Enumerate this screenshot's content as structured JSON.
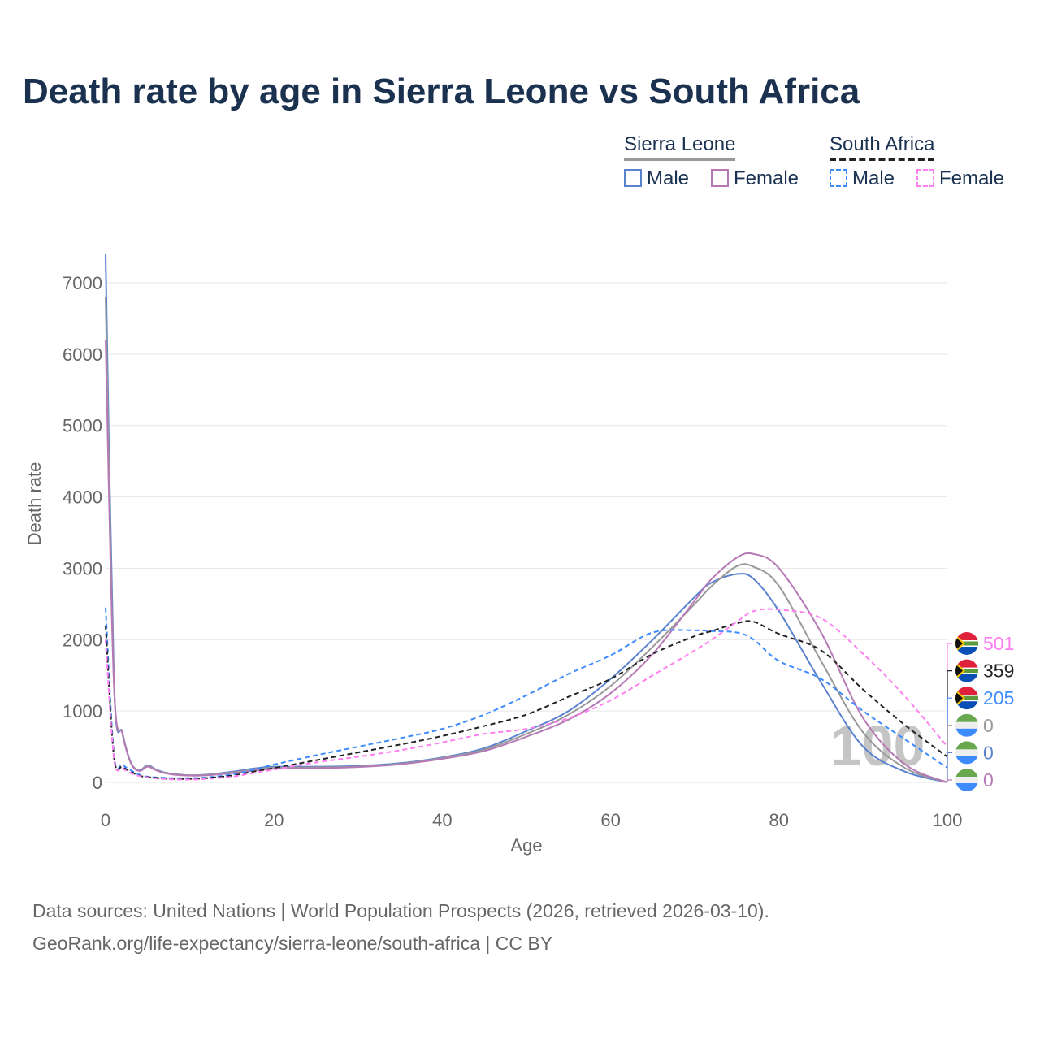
{
  "title": "Death rate by age in Sierra Leone vs South Africa",
  "legend": {
    "groups": [
      {
        "name": "Sierra Leone",
        "male": "Male",
        "female": "Female"
      },
      {
        "name": "South Africa",
        "male": "Male",
        "female": "Female"
      }
    ]
  },
  "sources": [
    "Data sources: United Nations | World Population Prospects (2026, retrieved 2026-03-10).",
    "GeoRank.org/life-expectancy/sierra-leone/south-africa | CC BY"
  ],
  "watermark": "100",
  "chart_data": {
    "type": "line",
    "title": "Death rate by age in Sierra Leone vs South Africa",
    "xlabel": "Age",
    "ylabel": "Death rate",
    "xlim": [
      0,
      100
    ],
    "ylim": [
      0,
      7400
    ],
    "xticks": [
      "0",
      "20",
      "40",
      "60",
      "80",
      "100"
    ],
    "yticks": [
      "0",
      "1000",
      "2000",
      "3000",
      "4000",
      "5000",
      "6000",
      "7000"
    ],
    "x": [
      0,
      1,
      2,
      3,
      4,
      5,
      6,
      7,
      8,
      10,
      12,
      15,
      18,
      20,
      25,
      30,
      35,
      40,
      45,
      50,
      55,
      60,
      65,
      70,
      72,
      75,
      77,
      80,
      85,
      90,
      95,
      100
    ],
    "series": [
      {
        "name": "Sierra Leone Male",
        "color": "#5b82cf",
        "dash": false,
        "end_label": "0",
        "flag": "sl",
        "values": [
          7400,
          1400,
          700,
          280,
          170,
          240,
          180,
          140,
          120,
          100,
          110,
          150,
          200,
          220,
          220,
          230,
          270,
          350,
          480,
          720,
          1000,
          1450,
          2000,
          2600,
          2800,
          2920,
          2850,
          2400,
          1400,
          500,
          150,
          0
        ]
      },
      {
        "name": "Sierra Leone Total",
        "color": "#999999",
        "dash": false,
        "end_label": "0",
        "flag": "sl",
        "values": [
          6800,
          1380,
          690,
          275,
          165,
          230,
          175,
          135,
          115,
          100,
          105,
          140,
          185,
          205,
          210,
          220,
          260,
          340,
          460,
          680,
          950,
          1350,
          1900,
          2500,
          2750,
          3030,
          3020,
          2750,
          1700,
          700,
          200,
          0
        ]
      },
      {
        "name": "Sierra Leone Female",
        "color": "#b57ab5",
        "dash": false,
        "end_label": "0",
        "flag": "sl",
        "values": [
          6200,
          1350,
          680,
          270,
          160,
          220,
          170,
          130,
          110,
          95,
          100,
          130,
          170,
          190,
          200,
          215,
          255,
          330,
          440,
          640,
          880,
          1250,
          1800,
          2550,
          2850,
          3150,
          3200,
          3000,
          2100,
          900,
          250,
          0
        ]
      },
      {
        "name": "South Africa Male",
        "color": "#3d8bff",
        "dash": true,
        "end_label": "205",
        "flag": "za",
        "values": [
          2450,
          380,
          250,
          170,
          110,
          80,
          70,
          65,
          60,
          60,
          70,
          110,
          190,
          250,
          380,
          500,
          620,
          750,
          950,
          1220,
          1520,
          1780,
          2100,
          2130,
          2120,
          2100,
          2000,
          1700,
          1450,
          1000,
          600,
          205
        ]
      },
      {
        "name": "South Africa Total",
        "color": "#222222",
        "dash": true,
        "end_label": "359",
        "flag": "za",
        "values": [
          2200,
          350,
          220,
          150,
          95,
          75,
          62,
          55,
          50,
          50,
          60,
          95,
          160,
          200,
          310,
          420,
          530,
          650,
          790,
          950,
          1200,
          1450,
          1800,
          2050,
          2120,
          2230,
          2250,
          2080,
          1850,
          1300,
          800,
          359
        ]
      },
      {
        "name": "South Africa Female",
        "color": "#ff80f0",
        "dash": true,
        "end_label": "501",
        "flag": "za",
        "values": [
          2000,
          330,
          200,
          130,
          90,
          70,
          55,
          48,
          42,
          40,
          50,
          80,
          140,
          180,
          280,
          360,
          450,
          560,
          680,
          750,
          900,
          1150,
          1500,
          1850,
          2000,
          2250,
          2400,
          2420,
          2300,
          1800,
          1200,
          501
        ]
      }
    ]
  }
}
